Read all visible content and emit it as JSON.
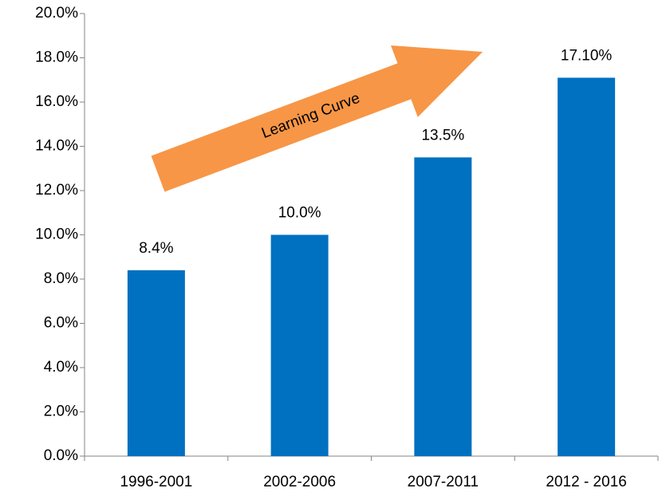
{
  "chart_data": {
    "type": "bar",
    "categories": [
      "1996-2001",
      "2002-2006",
      "2007-2011",
      "2012 - 2016"
    ],
    "values": [
      8.4,
      10.0,
      13.5,
      17.1
    ],
    "value_labels": [
      "8.4%",
      "10.0%",
      "13.5%",
      "17.10%"
    ],
    "color": "#0070c0",
    "ylim": [
      0,
      20
    ],
    "yticks": [
      {
        "value": 0,
        "label": "0.0%"
      },
      {
        "value": 2,
        "label": "2.0%"
      },
      {
        "value": 4,
        "label": "4.0%"
      },
      {
        "value": 6,
        "label": "6.0%"
      },
      {
        "value": 8,
        "label": "8.0%"
      },
      {
        "value": 10,
        "label": "10.0%"
      },
      {
        "value": 12,
        "label": "12.0%"
      },
      {
        "value": 14,
        "label": "14.0%"
      },
      {
        "value": 16,
        "label": "16.0%"
      },
      {
        "value": 18,
        "label": "18.0%"
      },
      {
        "value": 20,
        "label": "20.0%"
      }
    ],
    "grid": false,
    "annotation": "Learning Curve",
    "annotation_color": "#f79646"
  }
}
